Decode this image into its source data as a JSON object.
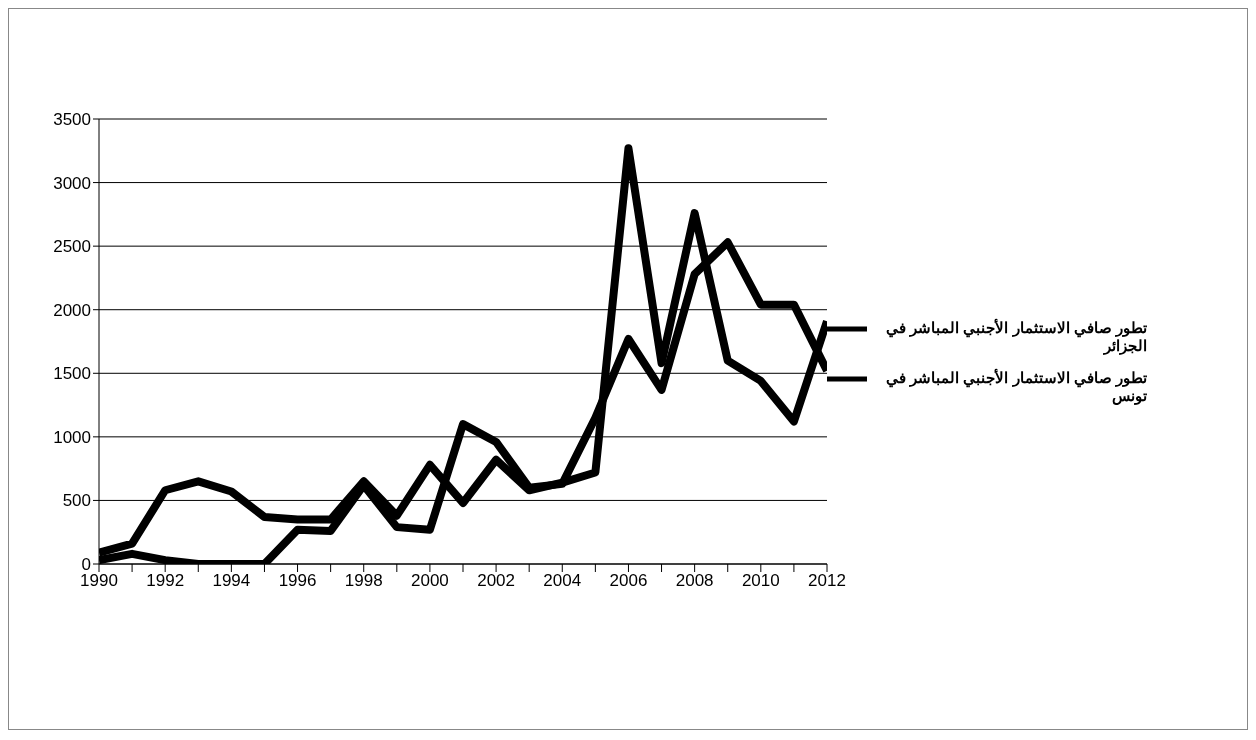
{
  "chart_data": {
    "type": "line",
    "x": [
      1990,
      1991,
      1992,
      1993,
      1994,
      1995,
      1996,
      1997,
      1998,
      1999,
      2000,
      2001,
      2002,
      2003,
      2004,
      2005,
      2006,
      2007,
      2008,
      2009,
      2010,
      2011,
      2012
    ],
    "series": [
      {
        "name": "تطور صافي الاستثمار الأجنبي المباشر في الجزائر",
        "color": "#000000",
        "values": [
          30,
          80,
          30,
          0,
          0,
          0,
          270,
          260,
          620,
          290,
          270,
          1100,
          960,
          600,
          630,
          1150,
          1770,
          1370,
          2280,
          2530,
          2040,
          2040,
          1520
        ]
      },
      {
        "name": "تطور صافي الاستثمار الأجنبي المباشر في تونس",
        "color": "#000000",
        "values": [
          90,
          160,
          580,
          650,
          570,
          370,
          350,
          350,
          650,
          380,
          780,
          480,
          820,
          580,
          640,
          720,
          3270,
          1580,
          2760,
          1600,
          1440,
          1120,
          1910
        ]
      }
    ],
    "xlim": [
      1990,
      2012
    ],
    "xticks": [
      1990,
      {
        "value": 1991,
        "label": null
      },
      1992,
      {
        "value": 1993,
        "label": null
      },
      1994,
      {
        "value": 1995,
        "label": null
      },
      1996,
      {
        "value": 1997,
        "label": null
      },
      1998,
      {
        "value": 1999,
        "label": null
      },
      2000,
      {
        "value": 2001,
        "label": null
      },
      2002,
      {
        "value": 2003,
        "label": null
      },
      2004,
      {
        "value": 2005,
        "label": null
      },
      2006,
      {
        "value": 2007,
        "label": null
      },
      2008,
      {
        "value": 2009,
        "label": null
      },
      2010,
      {
        "value": 2011,
        "label": null
      },
      2012
    ],
    "ylim": [
      0,
      3500
    ],
    "yticks": [
      0,
      500,
      1000,
      1500,
      2000,
      2500,
      3000,
      3500
    ],
    "grid": "y",
    "legend": "right",
    "marker": "none",
    "line_style": "solid"
  }
}
